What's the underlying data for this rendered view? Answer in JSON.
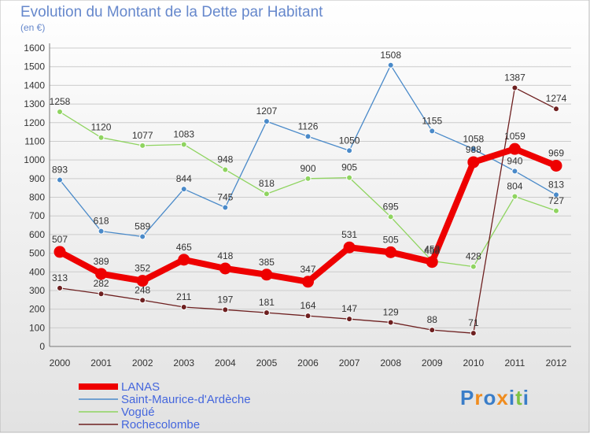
{
  "chart_data": {
    "type": "line",
    "title": "Evolution du Montant de la Dette par Habitant",
    "subtitle": "(en €)",
    "x": [
      "2000",
      "2001",
      "2002",
      "2003",
      "2004",
      "2005",
      "2006",
      "2007",
      "2008",
      "2009",
      "2010",
      "2011",
      "2012"
    ],
    "ylim": [
      0,
      1600
    ],
    "yticks": [
      0,
      100,
      200,
      300,
      400,
      500,
      600,
      700,
      800,
      900,
      1000,
      1100,
      1200,
      1300,
      1400,
      1500,
      1600
    ],
    "grid": "horizontal",
    "legend_position": "bottom-left",
    "series": [
      {
        "name": "Saint-Maurice-d'Ardèche",
        "color": "#4a8ac9",
        "values": [
          893,
          618,
          589,
          844,
          745,
          1207,
          1126,
          1050,
          1508,
          1155,
          1058,
          940,
          813
        ]
      },
      {
        "name": "Vogüé",
        "color": "#8fd460",
        "values": [
          1258,
          1120,
          1077,
          1083,
          948,
          818,
          900,
          905,
          695,
          458,
          428,
          804,
          727
        ]
      },
      {
        "name": "Rochecolombe",
        "color": "#6e2020",
        "values": [
          313,
          282,
          248,
          211,
          197,
          181,
          164,
          147,
          129,
          88,
          71,
          1387,
          1274
        ]
      },
      {
        "name": "LANAS",
        "color": "#ee0000",
        "values": [
          507,
          389,
          352,
          465,
          418,
          385,
          347,
          531,
          505,
          453,
          988,
          1059,
          969
        ]
      }
    ]
  },
  "logo": {
    "text": "Proxiti"
  }
}
